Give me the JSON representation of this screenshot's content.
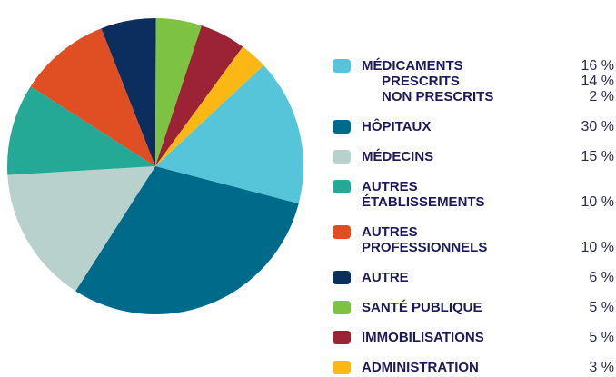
{
  "chart_data": {
    "type": "pie",
    "categories": [
      "MÉDICAMENTS",
      "HÔPITAUX",
      "MÉDECINS",
      "AUTRES\nÉTABLISSEMENTS",
      "AUTRES\nPROFESSIONNELS",
      "AUTRE",
      "SANTÉ PUBLIQUE",
      "IMMOBILISATIONS",
      "ADMINISTRATION"
    ],
    "values": [
      16,
      30,
      15,
      10,
      10,
      6,
      5,
      5,
      3
    ],
    "value_labels": [
      "16 %",
      "30 %",
      "15 %",
      "10 %",
      "10 %",
      "6 %",
      "5 %",
      "5 %",
      "3 %"
    ],
    "colors": [
      "#56c5da",
      "#006a8a",
      "#b9d1cc",
      "#24a996",
      "#e04e24",
      "#0b2e5e",
      "#7dc242",
      "#9b2335",
      "#fbb814"
    ],
    "subitems": [
      {
        "name": "PRESCRITS",
        "value": 14,
        "label": "14 %"
      },
      {
        "name": "NON PRESCRITS",
        "value": 2,
        "label": "2 %"
      }
    ]
  }
}
